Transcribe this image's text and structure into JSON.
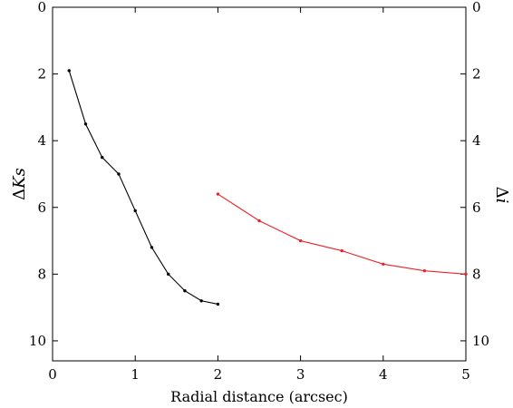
{
  "chart_data": {
    "type": "line",
    "xlabel": "Radial distance (arcsec)",
    "ylabel_left_prefix": "Δ",
    "ylabel_left_var": "Ks",
    "ylabel_right_prefix": "Δ",
    "ylabel_right_var": "i",
    "xlim": [
      0,
      5
    ],
    "ylim": [
      10.6,
      0
    ],
    "x_ticks": [
      0,
      1,
      2,
      3,
      4,
      5
    ],
    "x_tick_labels": [
      "0",
      "1",
      "2",
      "3",
      "4",
      "5"
    ],
    "y_ticks": [
      0,
      2,
      4,
      6,
      8,
      10
    ],
    "y_tick_labels": [
      "0",
      "2",
      "4",
      "6",
      "8",
      "10"
    ],
    "grid": false,
    "series": [
      {
        "color": "#000000",
        "axis": "left",
        "x": [
          0.2,
          0.4,
          0.6,
          0.8,
          1.0,
          1.2,
          1.4,
          1.6,
          1.8,
          2.0
        ],
        "y": [
          1.9,
          3.5,
          4.5,
          5.0,
          6.1,
          7.2,
          8.0,
          8.5,
          8.8,
          8.9
        ]
      },
      {
        "color": "#e8252a",
        "axis": "right",
        "x": [
          2.0,
          2.5,
          3.0,
          3.5,
          4.0,
          4.5,
          5.0
        ],
        "y": [
          5.6,
          6.4,
          7.0,
          7.3,
          7.7,
          7.9,
          8.0
        ]
      }
    ]
  }
}
